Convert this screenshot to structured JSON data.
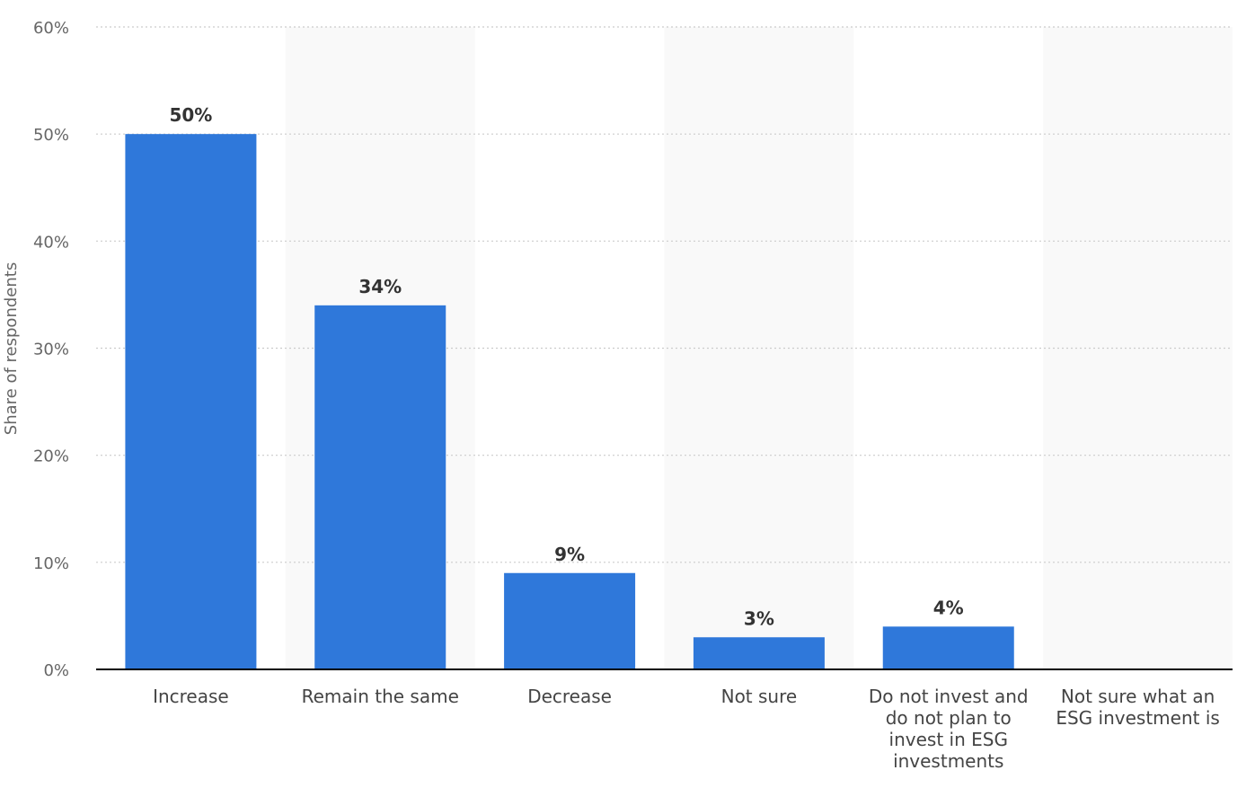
{
  "chart_data": {
    "type": "bar",
    "categories": [
      "Increase",
      "Remain the same",
      "Decrease",
      "Not sure",
      "Do not invest and do not plan to invest in ESG investments",
      "Not sure what an ESG investment is"
    ],
    "values": [
      50,
      34,
      9,
      3,
      4,
      0
    ],
    "data_labels": [
      "50%",
      "34%",
      "9%",
      "3%",
      "4%",
      ""
    ],
    "ylabel": "Share of respondents",
    "ylim": [
      0,
      60
    ],
    "yticks": [
      0,
      10,
      20,
      30,
      40,
      50,
      60
    ],
    "ytick_labels": [
      "0%",
      "10%",
      "20%",
      "30%",
      "40%",
      "50%",
      "60%"
    ],
    "grid": true,
    "bar_color": "#2f78da",
    "alt_band_color": "#f9f9f9",
    "grid_color": "#cccccc",
    "axis_color": "#000000"
  }
}
